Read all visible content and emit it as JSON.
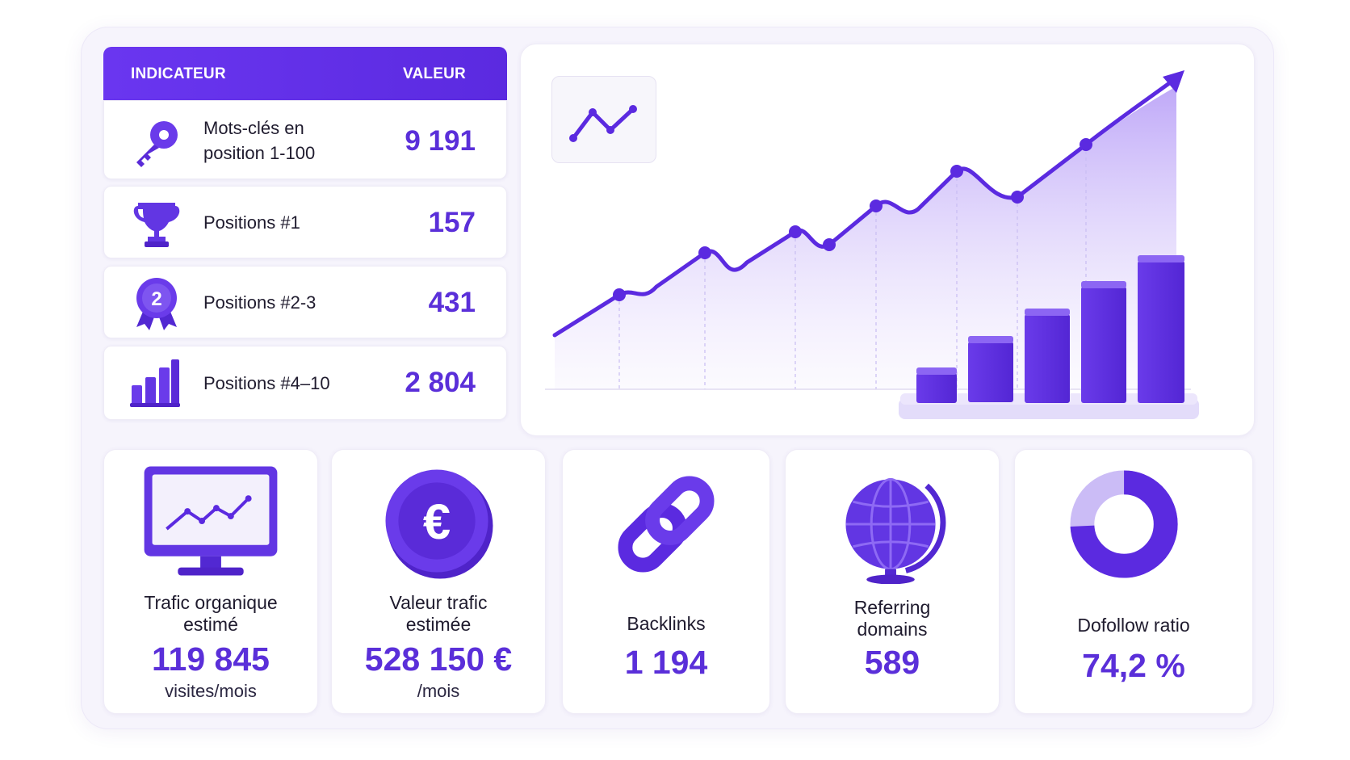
{
  "table": {
    "header": {
      "indicator": "INDICATEUR",
      "value": "VALEUR"
    },
    "rows": [
      {
        "icon": "key-icon",
        "label_line1": "Mots-clés en",
        "label_line2": "position 1-100",
        "value": "9 191"
      },
      {
        "icon": "trophy-icon",
        "label": "Positions #1",
        "value": "157"
      },
      {
        "icon": "medal-2-icon",
        "label": "Positions #2-3",
        "value": "431",
        "badge": "2"
      },
      {
        "icon": "bar-chart-icon",
        "label": "Positions #4–10",
        "value": "2 804"
      }
    ]
  },
  "chart": {
    "icon": "trend-line-icon",
    "type": "line",
    "accent_color": "#5b2ae0",
    "trend": "upward"
  },
  "cards": [
    {
      "icon": "monitor-chart-icon",
      "label_line1": "Trafic organique",
      "label_line2": "estimé",
      "value": "119 845",
      "unit": "visites/mois"
    },
    {
      "icon": "euro-coin-icon",
      "label_line1": "Valeur trafic",
      "label_line2": "estimée",
      "value": "528 150 €",
      "unit": "/mois"
    },
    {
      "icon": "chain-link-icon",
      "label": "Backlinks",
      "value": "1 194"
    },
    {
      "icon": "globe-icon",
      "label_line1": "Referring",
      "label_line2": "domains",
      "value": "589"
    },
    {
      "icon": "donut-chart-icon",
      "label": "Dofollow ratio",
      "value": "74,2 %",
      "ratio": 0.742
    }
  ],
  "colors": {
    "primary": "#5b2ae0",
    "light": "#c9b8f7",
    "background": "#f6f4fc"
  }
}
